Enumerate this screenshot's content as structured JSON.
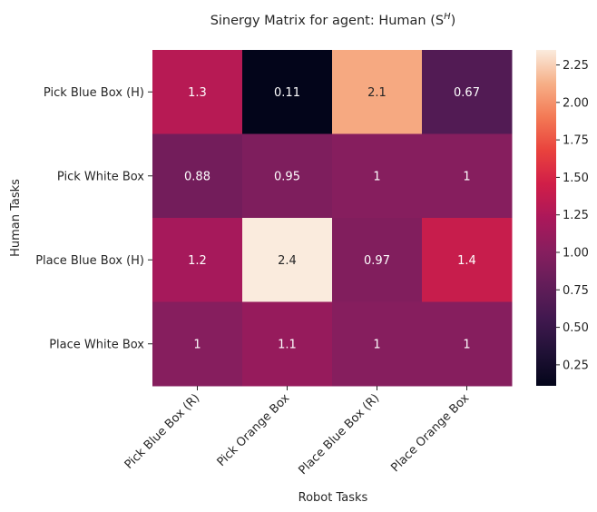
{
  "chart_data": {
    "type": "heatmap",
    "title": "Sinergy Matrix for agent: Human (S",
    "title_superscript": "H",
    "title_suffix": ")",
    "xlabel": "Robot Tasks",
    "ylabel": "Human Tasks",
    "x_categories": [
      "Pick Blue Box (R)",
      "Pick Orange Box",
      "Place Blue Box (R)",
      "Place Orange Box"
    ],
    "y_categories": [
      "Pick Blue Box (H)",
      "Pick White Box",
      "Place Blue Box (H)",
      "Place White Box"
    ],
    "values": [
      [
        1.3,
        0.11,
        2.1,
        0.67
      ],
      [
        0.88,
        0.95,
        1.0,
        1.0
      ],
      [
        1.2,
        2.35,
        0.97,
        1.4
      ],
      [
        1.0,
        1.1,
        1.0,
        1.0
      ]
    ],
    "cell_labels": [
      [
        "1.3",
        "0.11",
        "2.1",
        "0.67"
      ],
      [
        "0.88",
        "0.95",
        "1",
        "1"
      ],
      [
        "1.2",
        "2.4",
        "0.97",
        "1.4"
      ],
      [
        "1",
        "1.1",
        "1",
        "1"
      ]
    ],
    "colormap": "rocket",
    "colorbar": {
      "range": [
        0.11,
        2.35
      ],
      "ticks": [
        0.25,
        0.5,
        0.75,
        1.0,
        1.25,
        1.5,
        1.75,
        2.0,
        2.25
      ],
      "tick_labels": [
        "0.25",
        "0.50",
        "0.75",
        "1.00",
        "1.25",
        "1.50",
        "1.75",
        "2.00",
        "2.25"
      ]
    },
    "colors": {
      "dark_text": "#262626",
      "light_text": "#ffffff"
    }
  }
}
